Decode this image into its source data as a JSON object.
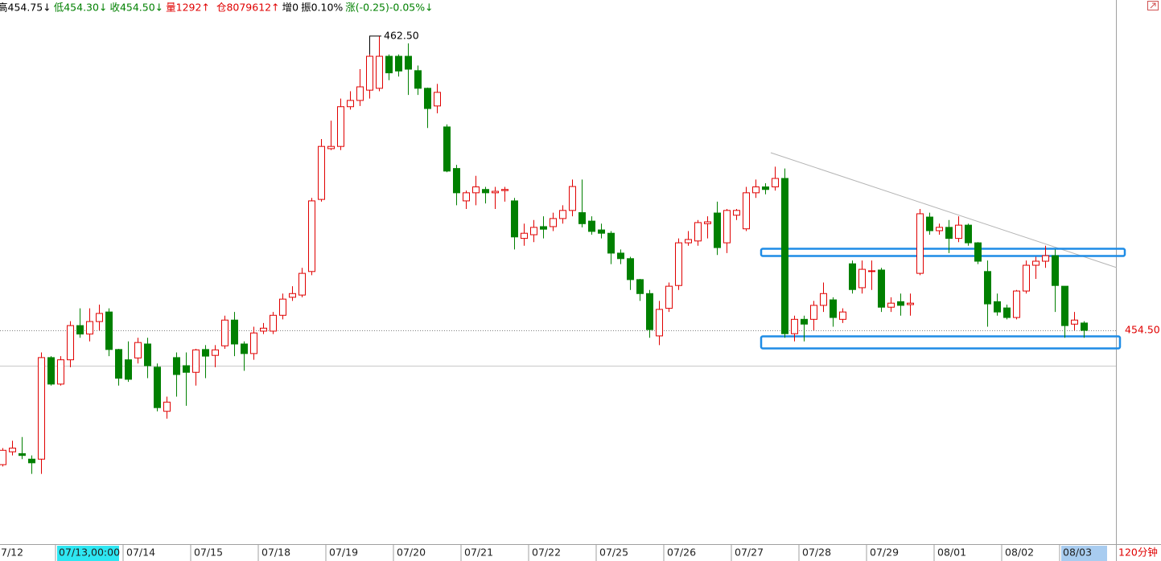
{
  "chart_data": {
    "type": "candlestick",
    "header": [
      {
        "text": "高454.75↓",
        "color": "#000000"
      },
      {
        "text": "低454.30↓",
        "color": "#008000"
      },
      {
        "text": "收454.50↓",
        "color": "#008000"
      },
      {
        "text": "量1292↑",
        "color": "#e00000"
      },
      {
        "text": "仓8079612↑",
        "color": "#e00000"
      },
      {
        "text": "增0",
        "color": "#000000"
      },
      {
        "text": "振0.10%",
        "color": "#000000"
      },
      {
        "text": "涨(-0.25)-0.05%↓",
        "color": "#008000"
      }
    ],
    "interval": "120分钟",
    "up_color": "#e00000",
    "down_color": "#008000",
    "ylim": [
      448.69,
      463.48
    ],
    "high_annotation": {
      "value": 462.5,
      "label": "462.50"
    },
    "last_price": {
      "value": 454.5,
      "label": "454.50"
    },
    "categories": [
      "7/12",
      null,
      null,
      null,
      null,
      null,
      "07/13,00:00",
      null,
      null,
      null,
      null,
      null,
      null,
      "07/14",
      null,
      null,
      null,
      null,
      null,
      null,
      "07/15",
      null,
      null,
      null,
      null,
      null,
      null,
      "07/18",
      null,
      null,
      null,
      null,
      null,
      null,
      "07/19",
      null,
      null,
      null,
      null,
      null,
      null,
      "07/20",
      null,
      null,
      null,
      null,
      null,
      null,
      "07/21",
      null,
      null,
      null,
      null,
      null,
      null,
      "07/22",
      null,
      null,
      null,
      null,
      null,
      null,
      "07/25",
      null,
      null,
      null,
      null,
      null,
      null,
      "07/26",
      null,
      null,
      null,
      null,
      null,
      null,
      "07/27",
      null,
      null,
      null,
      null,
      null,
      null,
      "07/28",
      null,
      null,
      null,
      null,
      null,
      null,
      "07/29",
      null,
      null,
      null,
      null,
      null,
      null,
      "08/01",
      null,
      null,
      null,
      null,
      null,
      null,
      "08/02",
      null,
      null,
      null,
      null,
      null,
      "08/03",
      null,
      null
    ],
    "open": [
      450.85,
      451.2,
      451.15,
      451.0,
      451.0,
      453.76,
      453.04,
      453.7,
      454.63,
      454.4,
      454.74,
      455.0,
      453.98,
      453.7,
      453.75,
      454.13,
      453.5,
      452.3,
      453.76,
      453.54,
      453.36,
      453.98,
      453.82,
      454.08,
      454.78,
      454.13,
      453.87,
      454.48,
      454.48,
      454.91,
      455.4,
      455.46,
      456.1,
      458.06,
      459.44,
      459.5,
      460.58,
      460.75,
      461.03,
      461.08,
      461.95,
      461.95,
      461.95,
      461.56,
      461.08,
      460.6,
      460.03,
      458.9,
      458.02,
      458.24,
      458.33,
      458.24,
      458.3,
      458.02,
      457.0,
      457.1,
      457.32,
      457.32,
      457.54,
      457.76,
      457.7,
      457.47,
      457.23,
      457.14,
      456.6,
      456.45,
      455.88,
      455.5,
      454.35,
      455.1,
      455.72,
      456.88,
      456.93,
      457.4,
      457.69,
      456.88,
      457.63,
      457.26,
      458.24,
      458.4,
      458.4,
      458.63,
      454.41,
      454.8,
      454.8,
      455.18,
      455.33,
      454.8,
      456.31,
      455.66,
      456.1,
      456.14,
      455.13,
      455.28,
      455.2,
      456.05,
      457.58,
      457.21,
      457.3,
      457.0,
      457.36,
      456.88,
      456.1,
      455.28,
      455.11,
      454.85,
      455.57,
      456.27,
      456.38,
      456.53,
      455.7,
      454.67,
      454.7
    ],
    "high": [
      451.3,
      451.5,
      451.6,
      451.1,
      453.9,
      453.8,
      453.8,
      454.75,
      455.1,
      455.1,
      455.2,
      455.1,
      454.0,
      454.2,
      454.3,
      454.3,
      453.6,
      452.7,
      453.9,
      453.9,
      454.0,
      454.1,
      454.1,
      454.9,
      455.0,
      454.2,
      454.6,
      454.7,
      455.0,
      455.5,
      455.7,
      456.2,
      458.1,
      459.7,
      460.2,
      460.8,
      461.0,
      461.6,
      462.0,
      462.5,
      462.0,
      462.0,
      462.3,
      461.7,
      461.1,
      461.2,
      460.1,
      459.0,
      458.3,
      458.7,
      458.4,
      458.4,
      458.4,
      458.1,
      457.4,
      457.5,
      457.6,
      457.7,
      457.9,
      458.6,
      458.6,
      457.6,
      457.4,
      457.2,
      456.7,
      456.5,
      455.9,
      455.6,
      455.3,
      455.8,
      457.0,
      457.2,
      457.5,
      457.6,
      458.0,
      457.8,
      457.8,
      458.4,
      458.6,
      458.5,
      458.95,
      458.9,
      454.9,
      454.9,
      455.3,
      455.8,
      455.4,
      455.1,
      456.4,
      456.4,
      456.4,
      456.2,
      455.4,
      455.5,
      455.5,
      457.8,
      457.7,
      457.4,
      457.5,
      457.6,
      457.4,
      456.9,
      456.4,
      455.5,
      455.2,
      455.6,
      456.4,
      456.5,
      456.8,
      456.7,
      455.7,
      455.0,
      454.75
    ],
    "low": [
      450.8,
      451.1,
      451.0,
      450.6,
      450.6,
      453.0,
      453.0,
      453.5,
      454.3,
      454.2,
      454.5,
      453.8,
      453.0,
      453.1,
      453.6,
      453.2,
      452.3,
      452.1,
      452.7,
      452.45,
      453.0,
      453.2,
      453.5,
      454.0,
      453.8,
      453.4,
      453.7,
      454.4,
      454.4,
      454.8,
      455.3,
      455.4,
      456.0,
      458.0,
      459.4,
      459.4,
      460.5,
      460.6,
      460.8,
      461.0,
      461.3,
      461.4,
      460.9,
      460.9,
      460.0,
      460.4,
      458.8,
      457.9,
      457.8,
      457.9,
      457.95,
      457.8,
      458.0,
      456.7,
      456.8,
      456.9,
      457.0,
      457.2,
      457.4,
      457.6,
      457.3,
      457.1,
      457.0,
      456.3,
      456.3,
      455.6,
      455.3,
      454.3,
      454.1,
      455.0,
      455.6,
      456.8,
      456.8,
      457.0,
      456.55,
      456.6,
      457.5,
      457.2,
      458.1,
      458.2,
      458.3,
      454.3,
      454.2,
      454.2,
      454.5,
      455.0,
      454.6,
      454.7,
      455.5,
      455.5,
      455.6,
      455.0,
      455.0,
      454.9,
      454.9,
      456.0,
      457.1,
      457.1,
      456.6,
      456.9,
      456.8,
      456.3,
      454.6,
      454.9,
      454.8,
      454.8,
      455.5,
      455.9,
      456.2,
      455.0,
      454.3,
      454.5,
      454.3
    ],
    "close": [
      451.24,
      451.3,
      451.1,
      450.9,
      453.76,
      453.04,
      453.7,
      454.63,
      454.4,
      454.74,
      454.96,
      453.98,
      453.2,
      453.17,
      454.17,
      453.54,
      452.4,
      452.55,
      453.3,
      453.36,
      453.97,
      453.8,
      453.97,
      454.78,
      454.13,
      453.87,
      454.43,
      454.56,
      454.91,
      455.35,
      455.5,
      456.05,
      458.02,
      459.5,
      459.5,
      460.58,
      460.75,
      461.12,
      461.95,
      461.95,
      461.5,
      461.55,
      461.6,
      461.08,
      460.53,
      460.97,
      458.83,
      458.24,
      458.24,
      458.4,
      458.24,
      458.28,
      458.33,
      457.04,
      457.14,
      457.3,
      457.25,
      457.54,
      457.76,
      458.41,
      457.4,
      457.19,
      457.14,
      456.6,
      456.45,
      455.88,
      455.5,
      454.52,
      455.07,
      455.7,
      456.88,
      456.97,
      457.43,
      457.45,
      456.75,
      457.76,
      457.76,
      458.24,
      458.4,
      458.33,
      458.63,
      454.41,
      454.8,
      454.67,
      455.18,
      455.5,
      454.85,
      455.0,
      455.61,
      456.16,
      456.12,
      455.13,
      455.24,
      455.18,
      455.24,
      457.67,
      457.21,
      457.3,
      457.0,
      457.36,
      456.88,
      456.38,
      455.22,
      455.0,
      454.85,
      455.57,
      456.27,
      456.38,
      456.53,
      455.72,
      454.63,
      454.78,
      454.5
    ]
  }
}
